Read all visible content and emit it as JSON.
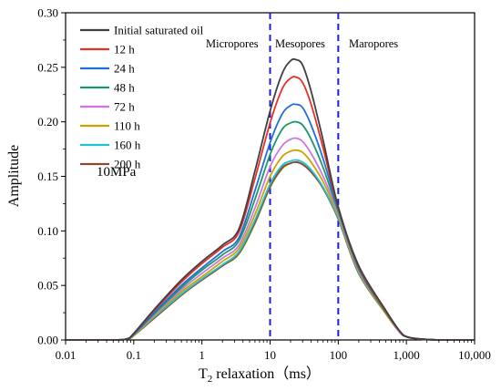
{
  "chart_data": {
    "type": "line",
    "xlabel_main": "T",
    "xlabel_sub": "2",
    "xlabel_rest": " relaxation（ms）",
    "ylabel": "Amplitude",
    "x_scale": "log",
    "xlim": [
      0.01,
      10000
    ],
    "ylim": [
      0,
      0.3
    ],
    "x_ticks": [
      0.01,
      0.1,
      1,
      10,
      100,
      1000,
      10000
    ],
    "x_tick_labels": [
      "0.01",
      "0.1",
      "1",
      "10",
      "100",
      "1,000",
      "10,000"
    ],
    "y_ticks": [
      0,
      0.05,
      0.1,
      0.15,
      0.2,
      0.25,
      0.3
    ],
    "y_tick_labels": [
      "0.00",
      "0.05",
      "0.10",
      "0.15",
      "0.20",
      "0.25",
      "0.30"
    ],
    "grid": false,
    "legend_position": "top-left",
    "annotation": "10MPa",
    "regions": [
      {
        "label": "Micropores"
      },
      {
        "label": "Mesopores"
      },
      {
        "label": "Maropores"
      }
    ],
    "boundaries": [
      10,
      100
    ],
    "boundary_color": "#1f1fd6",
    "x": [
      0.01,
      0.05,
      0.08,
      0.1,
      0.2,
      0.5,
      1,
      2,
      3.5,
      6,
      10,
      15,
      20,
      24,
      30,
      40,
      60,
      100,
      200,
      500,
      800,
      1000,
      1500,
      3000,
      10000
    ],
    "series": [
      {
        "name": "Initial saturated oil",
        "color": "#404040",
        "values": [
          0,
          0,
          0.001,
          0.006,
          0.028,
          0.055,
          0.072,
          0.087,
          0.102,
          0.155,
          0.21,
          0.244,
          0.256,
          0.257,
          0.252,
          0.228,
          0.183,
          0.122,
          0.068,
          0.027,
          0.008,
          0.003,
          0.001,
          0,
          0
        ]
      },
      {
        "name": "12 h",
        "color": "#e8302a",
        "values": [
          0,
          0,
          0.001,
          0.006,
          0.027,
          0.053,
          0.07,
          0.085,
          0.099,
          0.148,
          0.199,
          0.23,
          0.24,
          0.241,
          0.236,
          0.216,
          0.176,
          0.121,
          0.067,
          0.026,
          0.008,
          0.003,
          0.001,
          0,
          0
        ]
      },
      {
        "name": "24 h",
        "color": "#1f6fd4",
        "values": [
          0,
          0,
          0.001,
          0.005,
          0.025,
          0.05,
          0.066,
          0.081,
          0.094,
          0.137,
          0.181,
          0.207,
          0.215,
          0.216,
          0.213,
          0.197,
          0.166,
          0.12,
          0.066,
          0.026,
          0.008,
          0.003,
          0.001,
          0,
          0
        ]
      },
      {
        "name": "48 h",
        "color": "#1a9a6a",
        "values": [
          0,
          0,
          0.001,
          0.005,
          0.024,
          0.048,
          0.064,
          0.078,
          0.091,
          0.129,
          0.17,
          0.193,
          0.199,
          0.2,
          0.197,
          0.184,
          0.158,
          0.118,
          0.065,
          0.025,
          0.008,
          0.003,
          0.001,
          0,
          0
        ]
      },
      {
        "name": "72 h",
        "color": "#cc77e0",
        "values": [
          0,
          0,
          0.001,
          0.005,
          0.023,
          0.046,
          0.061,
          0.075,
          0.087,
          0.121,
          0.159,
          0.178,
          0.184,
          0.185,
          0.182,
          0.171,
          0.15,
          0.116,
          0.064,
          0.025,
          0.007,
          0.003,
          0.001,
          0,
          0
        ]
      },
      {
        "name": "110 h",
        "color": "#c9a400",
        "values": [
          0,
          0,
          0.001,
          0.004,
          0.022,
          0.044,
          0.058,
          0.072,
          0.084,
          0.115,
          0.15,
          0.168,
          0.173,
          0.174,
          0.172,
          0.163,
          0.145,
          0.114,
          0.063,
          0.024,
          0.007,
          0.003,
          0.001,
          0,
          0
        ]
      },
      {
        "name": "160 h",
        "color": "#22c2d2",
        "values": [
          0,
          0,
          0.001,
          0.004,
          0.021,
          0.042,
          0.056,
          0.069,
          0.081,
          0.11,
          0.143,
          0.16,
          0.164,
          0.165,
          0.163,
          0.156,
          0.14,
          0.112,
          0.062,
          0.024,
          0.007,
          0.003,
          0.001,
          0,
          0
        ]
      },
      {
        "name": "200 h",
        "color": "#8b4a2e",
        "values": [
          0,
          0,
          0.001,
          0.004,
          0.02,
          0.041,
          0.055,
          0.068,
          0.08,
          0.108,
          0.141,
          0.158,
          0.162,
          0.163,
          0.161,
          0.154,
          0.139,
          0.111,
          0.061,
          0.024,
          0.007,
          0.003,
          0.001,
          0,
          0
        ]
      },
      {
        "name": "",
        "color": "#8a8a1a",
        "values": [
          0,
          0,
          0.001,
          0.004,
          0.02,
          0.041,
          0.055,
          0.068,
          0.079,
          0.107,
          0.14,
          0.157,
          0.162,
          0.163,
          0.161,
          0.154,
          0.139,
          0.111,
          0.061,
          0.024,
          0.007,
          0.003,
          0.001,
          0,
          0
        ]
      }
    ]
  }
}
